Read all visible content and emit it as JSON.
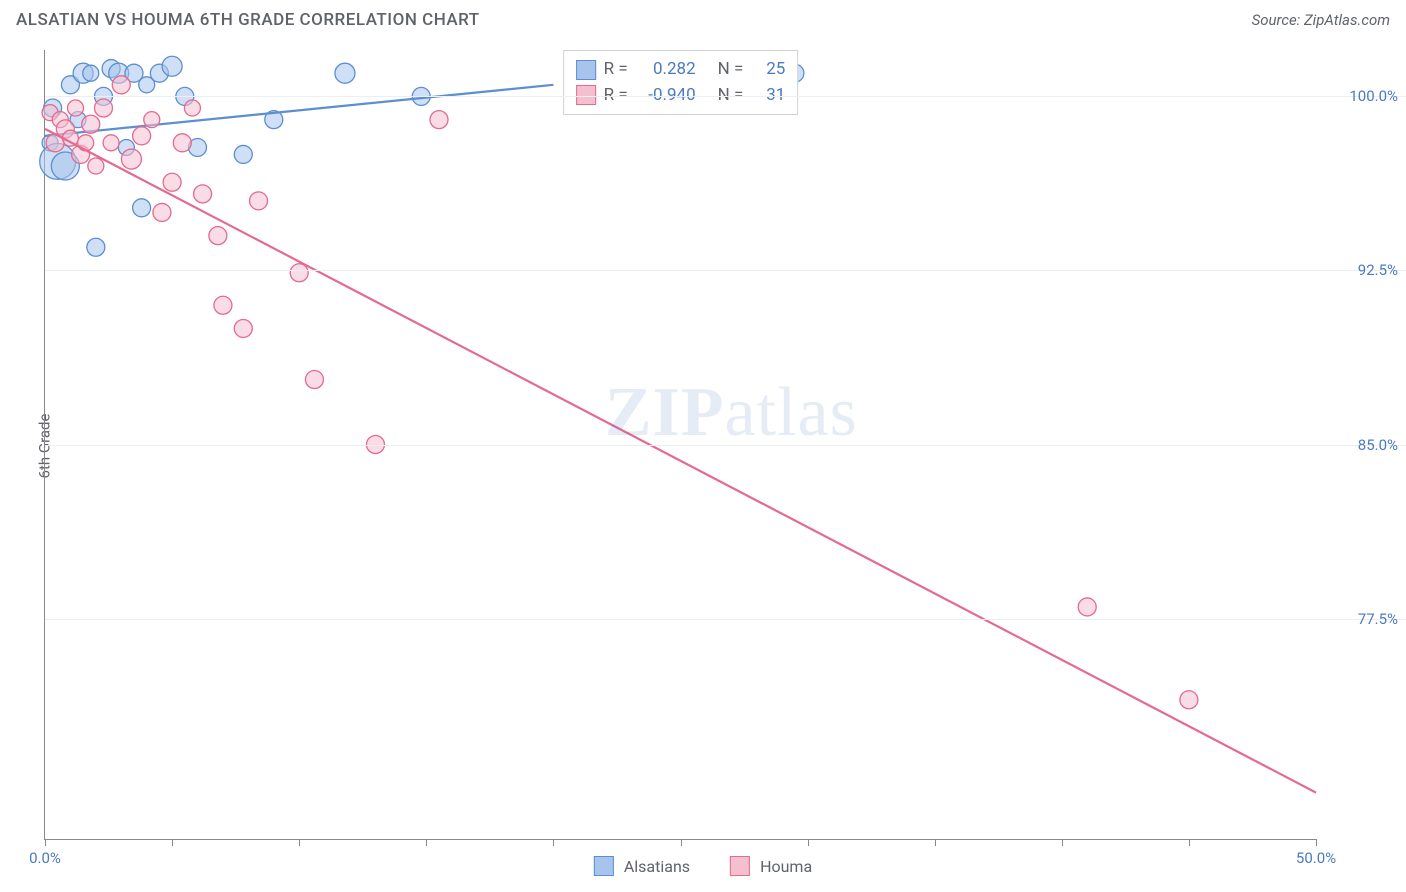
{
  "header": {
    "title": "ALSATIAN VS HOUMA 6TH GRADE CORRELATION CHART",
    "source_prefix": "Source: ",
    "source_name": "ZipAtlas.com"
  },
  "chart": {
    "type": "scatter",
    "ylabel": "6th Grade",
    "xlim": [
      0,
      50
    ],
    "ylim": [
      68,
      102
    ],
    "x_ticks": [
      0,
      5,
      10,
      15,
      20,
      25,
      30,
      35,
      40,
      45,
      50
    ],
    "x_tick_labels": {
      "0": "0.0%",
      "50": "50.0%"
    },
    "y_ticks": [
      77.5,
      85.0,
      92.5,
      100.0
    ],
    "y_tick_labels": [
      "77.5%",
      "85.0%",
      "92.5%",
      "100.0%"
    ],
    "background_color": "#ffffff",
    "grid_color": "#eceff1",
    "axis_color": "#888888",
    "label_color": "#4a7ac2",
    "text_color": "#5f6368",
    "watermark": {
      "text_bold": "ZIP",
      "text_rest": "atlas"
    },
    "series": [
      {
        "name": "Alsatians",
        "color_fill": "#a7c5ec",
        "color_stroke": "#5b8fd0",
        "marker_radius_default": 9,
        "points": [
          {
            "x": 0.2,
            "y": 98.0,
            "r": 8
          },
          {
            "x": 0.3,
            "y": 99.5,
            "r": 9
          },
          {
            "x": 0.5,
            "y": 97.2,
            "r": 18
          },
          {
            "x": 0.8,
            "y": 97.0,
            "r": 14
          },
          {
            "x": 1.0,
            "y": 100.5,
            "r": 9
          },
          {
            "x": 1.3,
            "y": 99.0,
            "r": 8
          },
          {
            "x": 1.5,
            "y": 101.0,
            "r": 10
          },
          {
            "x": 1.8,
            "y": 101.0,
            "r": 8
          },
          {
            "x": 2.0,
            "y": 93.5,
            "r": 9
          },
          {
            "x": 2.3,
            "y": 100.0,
            "r": 9
          },
          {
            "x": 2.6,
            "y": 101.2,
            "r": 9
          },
          {
            "x": 2.9,
            "y": 101.0,
            "r": 10
          },
          {
            "x": 3.2,
            "y": 97.8,
            "r": 8
          },
          {
            "x": 3.5,
            "y": 101.0,
            "r": 9
          },
          {
            "x": 3.8,
            "y": 95.2,
            "r": 9
          },
          {
            "x": 4.0,
            "y": 100.5,
            "r": 8
          },
          {
            "x": 4.5,
            "y": 101.0,
            "r": 9
          },
          {
            "x": 5.0,
            "y": 101.3,
            "r": 10
          },
          {
            "x": 5.5,
            "y": 100.0,
            "r": 9
          },
          {
            "x": 6.0,
            "y": 97.8,
            "r": 9
          },
          {
            "x": 7.8,
            "y": 97.5,
            "r": 9
          },
          {
            "x": 9.0,
            "y": 99.0,
            "r": 9
          },
          {
            "x": 11.8,
            "y": 101.0,
            "r": 10
          },
          {
            "x": 14.8,
            "y": 100.0,
            "r": 9
          },
          {
            "x": 29.5,
            "y": 101.0,
            "r": 9
          }
        ],
        "trend": {
          "x1": 0,
          "y1": 98.3,
          "x2": 20,
          "y2": 100.5,
          "width": 2.2
        }
      },
      {
        "name": "Houma",
        "color_fill": "#f4c0cf",
        "color_stroke": "#e46a8f",
        "marker_radius_default": 9,
        "points": [
          {
            "x": 0.2,
            "y": 99.3,
            "r": 8
          },
          {
            "x": 0.4,
            "y": 98.0,
            "r": 9
          },
          {
            "x": 0.6,
            "y": 99.0,
            "r": 8
          },
          {
            "x": 0.8,
            "y": 98.6,
            "r": 9
          },
          {
            "x": 1.0,
            "y": 98.2,
            "r": 8
          },
          {
            "x": 1.2,
            "y": 99.5,
            "r": 8
          },
          {
            "x": 1.4,
            "y": 97.5,
            "r": 9
          },
          {
            "x": 1.6,
            "y": 98.0,
            "r": 8
          },
          {
            "x": 1.8,
            "y": 98.8,
            "r": 9
          },
          {
            "x": 2.0,
            "y": 97.0,
            "r": 8
          },
          {
            "x": 2.3,
            "y": 99.5,
            "r": 9
          },
          {
            "x": 2.6,
            "y": 98.0,
            "r": 8
          },
          {
            "x": 3.0,
            "y": 100.5,
            "r": 9
          },
          {
            "x": 3.4,
            "y": 97.3,
            "r": 10
          },
          {
            "x": 3.8,
            "y": 98.3,
            "r": 9
          },
          {
            "x": 4.2,
            "y": 99.0,
            "r": 8
          },
          {
            "x": 4.6,
            "y": 95.0,
            "r": 9
          },
          {
            "x": 5.0,
            "y": 96.3,
            "r": 9
          },
          {
            "x": 5.4,
            "y": 98.0,
            "r": 9
          },
          {
            "x": 5.8,
            "y": 99.5,
            "r": 8
          },
          {
            "x": 6.2,
            "y": 95.8,
            "r": 9
          },
          {
            "x": 6.8,
            "y": 94.0,
            "r": 9
          },
          {
            "x": 7.0,
            "y": 91.0,
            "r": 9
          },
          {
            "x": 7.8,
            "y": 90.0,
            "r": 9
          },
          {
            "x": 8.4,
            "y": 95.5,
            "r": 9
          },
          {
            "x": 10.0,
            "y": 92.4,
            "r": 9
          },
          {
            "x": 10.6,
            "y": 87.8,
            "r": 9
          },
          {
            "x": 13.0,
            "y": 85.0,
            "r": 9
          },
          {
            "x": 15.5,
            "y": 99.0,
            "r": 9
          },
          {
            "x": 41.0,
            "y": 78.0,
            "r": 9
          },
          {
            "x": 45.0,
            "y": 74.0,
            "r": 9
          }
        ],
        "trend": {
          "x1": 0,
          "y1": 98.6,
          "x2": 50,
          "y2": 70.0,
          "width": 2.2
        }
      }
    ],
    "legend_stats": [
      {
        "series": 0,
        "r_label": "R =",
        "r_value": "0.282",
        "n_label": "N =",
        "n_value": "25"
      },
      {
        "series": 1,
        "r_label": "R =",
        "r_value": "-0.940",
        "n_label": "N =",
        "n_value": "31"
      }
    ],
    "bottom_legend": [
      {
        "series": 0,
        "label": "Alsatians"
      },
      {
        "series": 1,
        "label": "Houma"
      }
    ]
  }
}
